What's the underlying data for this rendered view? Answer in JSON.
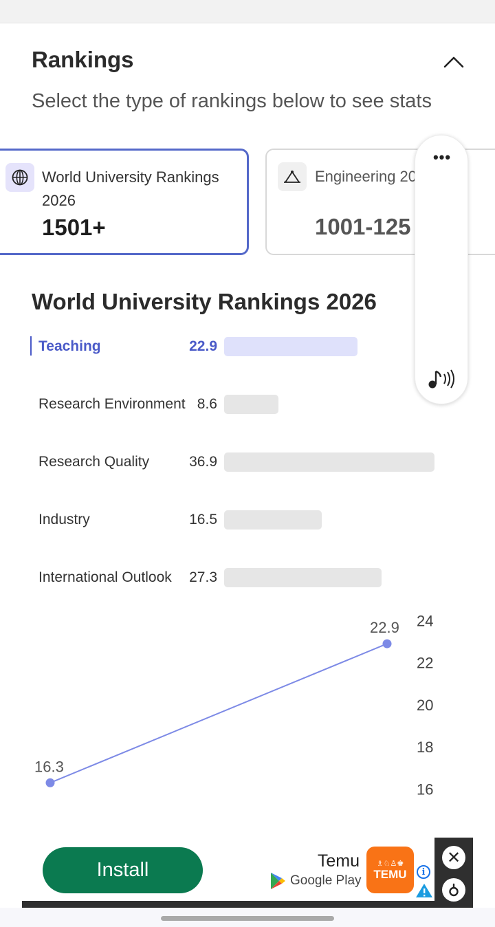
{
  "rankings": {
    "title": "Rankings",
    "subtitle": "Select the type of rankings below to see stats",
    "collapse_icon": "chevron-up-icon",
    "cards": [
      {
        "name": "World University Rankings 2026",
        "rank": "1501+",
        "icon": "globe-icon",
        "selected": true
      },
      {
        "name": "Engineering 20",
        "rank": "1001-125",
        "icon": "engineering-icon",
        "selected": false
      }
    ]
  },
  "floating_panel": {
    "more_icon": "more-horizontal-icon",
    "audio_icon": "audio-icon"
  },
  "chart_data": [
    {
      "type": "bar",
      "title": "World University Rankings 2026",
      "categories": [
        "Teaching",
        "Research Environment",
        "Research Quality",
        "Industry",
        "International Outlook"
      ],
      "values": [
        22.9,
        8.6,
        36.9,
        16.5,
        27.3
      ],
      "value_labels": [
        "22.9",
        "8.6",
        "36.9",
        "16.5",
        "27.3"
      ],
      "highlighted": "Teaching",
      "xlim": [
        0,
        40
      ],
      "colors": {
        "active_bar": "#dfe1fb",
        "bar": "#e6e6e6",
        "accent": "#4a5ac8"
      }
    },
    {
      "type": "line",
      "points": [
        16.3,
        22.9
      ],
      "point_labels": [
        "16.3",
        "22.9"
      ],
      "yticks": [
        "24",
        "22",
        "20",
        "18",
        "16"
      ],
      "ylim": [
        15.2,
        24.6
      ],
      "y_axis_position": "right",
      "color": "#7d8ae6"
    }
  ],
  "ad": {
    "install_label": "Install",
    "app_name": "Temu",
    "store_label": "Google Play",
    "logo_top": "♗♘♙♚",
    "logo_text": "TEMU",
    "info_icon": "info-icon",
    "warning_icon": "warning-icon",
    "close_icon": "close-icon",
    "adchoices_icon": "adchoices-icon",
    "colors": {
      "install": "#0b7a50",
      "logo": "#f97316"
    }
  }
}
